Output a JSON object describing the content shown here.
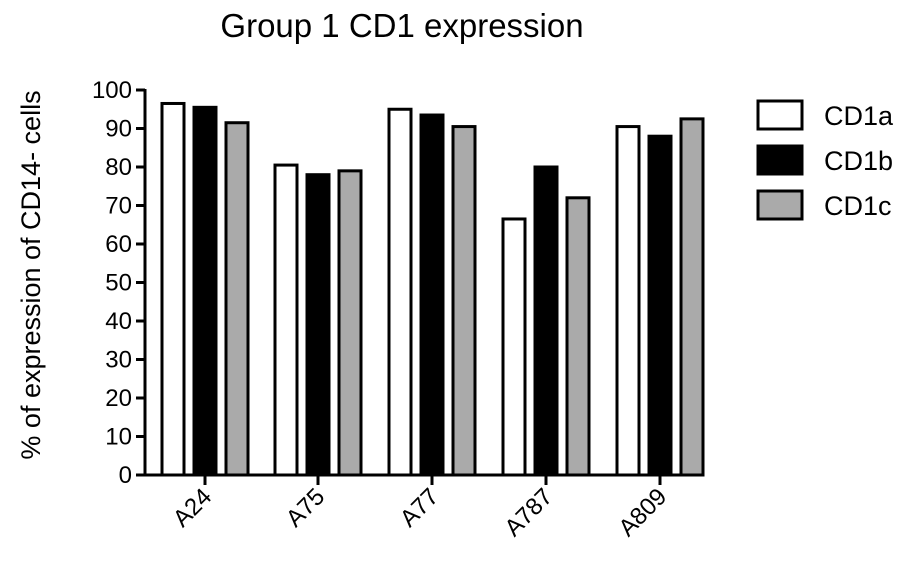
{
  "chart_data": {
    "type": "bar",
    "title": "Group 1 CD1 expression",
    "xlabel": "",
    "ylabel": "% of expression of CD14- cells",
    "ylim": [
      0,
      100
    ],
    "yticks": [
      0,
      10,
      20,
      30,
      40,
      50,
      60,
      70,
      80,
      90,
      100
    ],
    "categories": [
      "A24",
      "A75",
      "A77",
      "A787",
      "A809"
    ],
    "series": [
      {
        "name": "CD1a",
        "color": "#ffffff",
        "values": [
          96.5,
          80.5,
          95,
          66.5,
          90.5
        ]
      },
      {
        "name": "CD1b",
        "color": "#000000",
        "values": [
          95.5,
          78,
          93.5,
          80,
          88
        ]
      },
      {
        "name": "CD1c",
        "color": "#aaaaaa",
        "values": [
          91.5,
          79,
          90.5,
          72,
          92.5
        ]
      }
    ],
    "legend_position": "right",
    "grid": false
  }
}
